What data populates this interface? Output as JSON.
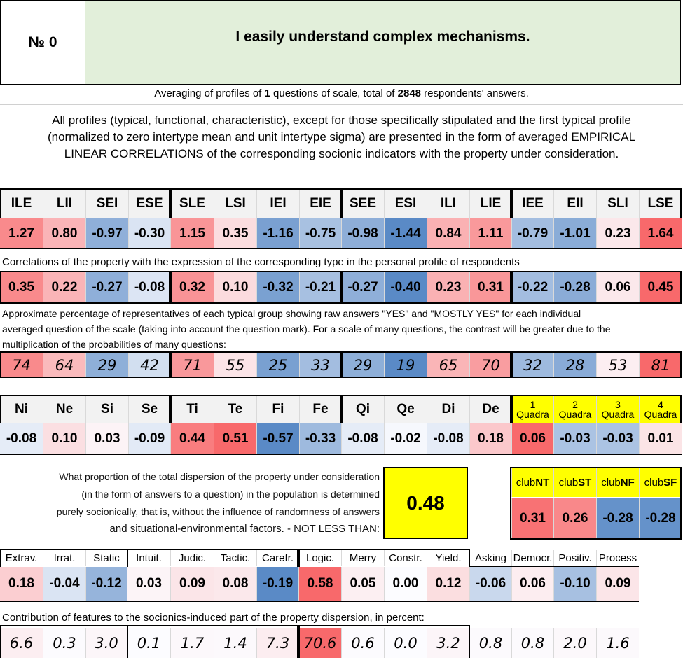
{
  "question": {
    "number_label": "№",
    "number": "0",
    "text": "I easily understand complex mechanisms."
  },
  "averaging": {
    "pre": "Averaging of profiles of ",
    "count": "1",
    "mid": " questions of scale, total of ",
    "respondents": "2848",
    "post": " respondents' answers."
  },
  "intro_paragraph": [
    "All profiles (typical, functional, characteristic), except for those specifically stipulated and the first typical profile",
    "(normalized to zero intertype mean and unit intertype sigma) are presented in the form of averaged EMPIRICAL",
    "LINEAR CORRELATIONS of the corresponding socionic indicators with the property under consideration."
  ],
  "types": [
    "ILE",
    "LII",
    "SEI",
    "ESE",
    "SLE",
    "LSI",
    "IEI",
    "EIE",
    "SEE",
    "ESI",
    "ILI",
    "LIE",
    "IEE",
    "EII",
    "SLI",
    "LSE"
  ],
  "type_profile": [
    "1.27",
    "0.80",
    "-0.97",
    "-0.30",
    "1.15",
    "0.35",
    "-1.16",
    "-0.75",
    "-0.98",
    "-1.44",
    "0.84",
    "1.11",
    "-0.79",
    "-1.01",
    "0.23",
    "1.64"
  ],
  "correlations_label": "Correlations of the property with the expression of the corresponding type in the personal profile of respondents",
  "type_correlations": [
    "0.35",
    "0.22",
    "-0.27",
    "-0.08",
    "0.32",
    "0.10",
    "-0.32",
    "-0.21",
    "-0.27",
    "-0.40",
    "0.23",
    "0.31",
    "-0.22",
    "-0.28",
    "0.06",
    "0.45"
  ],
  "percentage_label": [
    "Approximate percentage of representatives of each typical group showing raw answers \"YES\" and \"MOSTLY YES\" for each individual",
    "averaged question of the scale (taking into account the question mark). For a scale of many questions, the contrast will be greater due to the",
    "multiplication of the probabilities of many questions:"
  ],
  "type_percentages": [
    "74",
    "64",
    "29",
    "42",
    "71",
    "55",
    "25",
    "33",
    "29",
    "19",
    "65",
    "70",
    "32",
    "28",
    "53",
    "81"
  ],
  "functions": [
    "Ni",
    "Ne",
    "Si",
    "Se",
    "Ti",
    "Te",
    "Fi",
    "Fe",
    "Qi",
    "Qe",
    "Di",
    "De"
  ],
  "function_values": [
    "-0.08",
    "0.10",
    "0.03",
    "-0.09",
    "0.44",
    "0.51",
    "-0.57",
    "-0.33",
    "-0.08",
    "-0.02",
    "-0.08",
    "0.18"
  ],
  "quadras": [
    {
      "num": "1",
      "label": "Quadra"
    },
    {
      "num": "2",
      "label": "Quadra"
    },
    {
      "num": "3",
      "label": "Quadra"
    },
    {
      "num": "4",
      "label": "Quadra"
    }
  ],
  "quadra_values": [
    "0.06",
    "-0.03",
    "-0.03",
    "0.01"
  ],
  "dispersion": {
    "lines": [
      "What proportion of the total dispersion of the property under consideration",
      "(in the form of answers to a question) in the population is determined",
      "purely socionically, that is, without the influence of randomness of answers",
      "and situational-environmental factors. - NOT LESS THAN:"
    ],
    "value": "0.48"
  },
  "clubs": [
    {
      "prefix": "club",
      "code": "NT"
    },
    {
      "prefix": "club",
      "code": "ST"
    },
    {
      "prefix": "club",
      "code": "NF"
    },
    {
      "prefix": "club",
      "code": "SF"
    }
  ],
  "club_values": [
    "0.31",
    "0.26",
    "-0.28",
    "-0.28"
  ],
  "traits": [
    "Extrav.",
    "Irrat.",
    "Static",
    "Intuit.",
    "Judic.",
    "Tactic.",
    "Carefr.",
    "Logic.",
    "Merry",
    "Constr.",
    "Yield.",
    "Asking",
    "Democr.",
    "Positiv.",
    "Process"
  ],
  "trait_values": [
    "0.18",
    "-0.04",
    "-0.12",
    "0.03",
    "0.09",
    "0.08",
    "-0.19",
    "0.58",
    "0.05",
    "0.00",
    "0.12",
    "-0.06",
    "0.06",
    "-0.10",
    "0.09"
  ],
  "contribution_label": "Contribution of features to the socionics-induced part of the property dispersion, in percent:",
  "trait_contributions": [
    "6.6",
    "0.3",
    "3.0",
    "0.1",
    "1.7",
    "1.4",
    "7.3",
    "70.6",
    "0.6",
    "0.0",
    "3.2",
    "0.8",
    "0.8",
    "2.0",
    "1.6"
  ],
  "colors": {
    "question_bg": "#e2efda",
    "yellow": "#ffff00",
    "header_gray": "#f2f2f2",
    "positive_max": "#f8696b",
    "negative_max": "#5a8ac6",
    "neutral": "#fcfcff"
  }
}
